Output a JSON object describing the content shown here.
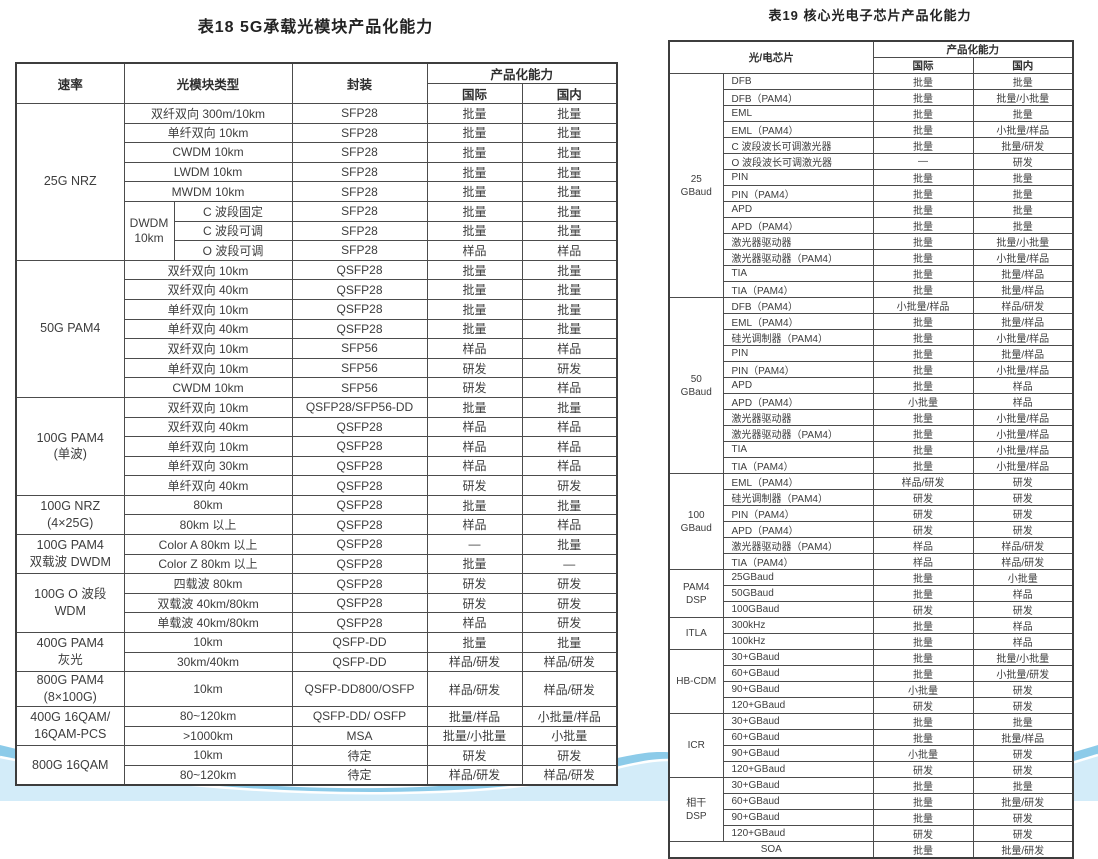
{
  "table18": {
    "title": "表18  5G承载光模块产品化能力",
    "header": {
      "rate": "速率",
      "module_type": "光模块类型",
      "package": "封装",
      "capability": "产品化能力",
      "international": "国际",
      "domestic": "国内"
    },
    "groups": [
      {
        "label": "25G NRZ",
        "rows": [
          {
            "t": "双纤双向 300m/10km",
            "p": "SFP28",
            "i": "批量",
            "d": "批量"
          },
          {
            "t": "单纤双向 10km",
            "p": "SFP28",
            "i": "批量",
            "d": "批量"
          },
          {
            "t": "CWDM 10km",
            "p": "SFP28",
            "i": "批量",
            "d": "批量"
          },
          {
            "t": "LWDM 10km",
            "p": "SFP28",
            "i": "批量",
            "d": "批量"
          },
          {
            "t": "MWDM 10km",
            "p": "SFP28",
            "i": "批量",
            "d": "批量"
          },
          {
            "s": "DWDM\n10km",
            "ss": 3,
            "t": "C 波段固定",
            "p": "SFP28",
            "i": "批量",
            "d": "批量"
          },
          {
            "in": 1,
            "t": "C 波段可调",
            "p": "SFP28",
            "i": "批量",
            "d": "批量"
          },
          {
            "in": 1,
            "t": "O 波段可调",
            "p": "SFP28",
            "i": "样品",
            "d": "样品"
          }
        ]
      },
      {
        "label": "50G PAM4",
        "rows": [
          {
            "t": "双纤双向 10km",
            "p": "QSFP28",
            "i": "批量",
            "d": "批量"
          },
          {
            "t": "双纤双向 40km",
            "p": "QSFP28",
            "i": "批量",
            "d": "批量"
          },
          {
            "t": "单纤双向 10km",
            "p": "QSFP28",
            "i": "批量",
            "d": "批量"
          },
          {
            "t": "单纤双向 40km",
            "p": "QSFP28",
            "i": "批量",
            "d": "批量"
          },
          {
            "t": "双纤双向 10km",
            "p": "SFP56",
            "i": "样品",
            "d": "样品"
          },
          {
            "t": "单纤双向 10km",
            "p": "SFP56",
            "i": "研发",
            "d": "研发"
          },
          {
            "t": "CWDM 10km",
            "p": "SFP56",
            "i": "研发",
            "d": "样品"
          }
        ]
      },
      {
        "label": "100G PAM4\n(单波)",
        "rows": [
          {
            "t": "双纤双向 10km",
            "p": "QSFP28/SFP56-DD",
            "i": "批量",
            "d": "批量"
          },
          {
            "t": "双纤双向 40km",
            "p": "QSFP28",
            "i": "样品",
            "d": "样品"
          },
          {
            "t": "单纤双向 10km",
            "p": "QSFP28",
            "i": "样品",
            "d": "样品"
          },
          {
            "t": "单纤双向 30km",
            "p": "QSFP28",
            "i": "样品",
            "d": "样品"
          },
          {
            "t": "单纤双向 40km",
            "p": "QSFP28",
            "i": "研发",
            "d": "研发"
          }
        ]
      },
      {
        "label": "100G NRZ\n(4×25G)",
        "rows": [
          {
            "t": "80km",
            "p": "QSFP28",
            "i": "批量",
            "d": "批量"
          },
          {
            "t": "80km 以上",
            "p": "QSFP28",
            "i": "样品",
            "d": "样品"
          }
        ]
      },
      {
        "label": "100G PAM4\n双载波 DWDM",
        "rows": [
          {
            "t": "Color A 80km 以上",
            "p": "QSFP28",
            "i": "—",
            "d": "批量"
          },
          {
            "t": "Color Z 80km 以上",
            "p": "QSFP28",
            "i": "批量",
            "d": "—"
          }
        ]
      },
      {
        "label": "100G O 波段\nWDM",
        "rows": [
          {
            "t": "四载波 80km",
            "p": "QSFP28",
            "i": "研发",
            "d": "研发"
          },
          {
            "t": "双载波 40km/80km",
            "p": "QSFP28",
            "i": "研发",
            "d": "研发"
          },
          {
            "t": "单载波 40km/80km",
            "p": "QSFP28",
            "i": "样品",
            "d": "研发"
          }
        ]
      },
      {
        "label": "400G PAM4\n灰光",
        "rows": [
          {
            "t": "10km",
            "p": "QSFP-DD",
            "i": "批量",
            "d": "批量"
          },
          {
            "t": "30km/40km",
            "p": "QSFP-DD",
            "i": "样品/研发",
            "d": "样品/研发"
          }
        ]
      },
      {
        "label": "800G PAM4\n(8×100G)",
        "rows": [
          {
            "tall": 1,
            "t": "10km",
            "p": "QSFP-DD800/OSFP",
            "i": "样品/研发",
            "d": "样品/研发"
          }
        ]
      },
      {
        "label": "400G 16QAM/\n16QAM-PCS",
        "rows": [
          {
            "t": "80~120km",
            "p": "QSFP-DD/ OSFP",
            "i": "批量/样品",
            "d": "小批量/样品"
          },
          {
            "t": ">1000km",
            "p": "MSA",
            "i": "批量/小批量",
            "d": "小批量"
          }
        ]
      },
      {
        "label": "800G 16QAM",
        "rows": [
          {
            "t": "10km",
            "p": "待定",
            "i": "研发",
            "d": "研发"
          },
          {
            "t": "80~120km",
            "p": "待定",
            "i": "样品/研发",
            "d": "样品/研发"
          }
        ]
      }
    ]
  },
  "table19": {
    "title": "表19  核心光电子芯片产品化能力",
    "header": {
      "chip": "光/电芯片",
      "capability": "产品化能力",
      "international": "国际",
      "domestic": "国内"
    },
    "groups": [
      {
        "label": "25\nGBaud",
        "rows": [
          {
            "t": "DFB",
            "i": "批量",
            "d": "批量"
          },
          {
            "t": "DFB（PAM4）",
            "i": "批量",
            "d": "批量/小批量"
          },
          {
            "t": "EML",
            "i": "批量",
            "d": "批量"
          },
          {
            "t": "EML（PAM4）",
            "i": "批量",
            "d": "小批量/样品"
          },
          {
            "t": "C 波段波长可调激光器",
            "i": "批量",
            "d": "批量/研发"
          },
          {
            "t": "O 波段波长可调激光器",
            "i": "—",
            "d": "研发"
          },
          {
            "t": "PIN",
            "i": "批量",
            "d": "批量"
          },
          {
            "t": "PIN（PAM4）",
            "i": "批量",
            "d": "批量"
          },
          {
            "t": "APD",
            "i": "批量",
            "d": "批量"
          },
          {
            "t": "APD（PAM4）",
            "i": "批量",
            "d": "批量"
          },
          {
            "t": "激光器驱动器",
            "i": "批量",
            "d": "批量/小批量"
          },
          {
            "t": "激光器驱动器（PAM4）",
            "i": "批量",
            "d": "小批量/样品"
          },
          {
            "t": "TIA",
            "i": "批量",
            "d": "批量/样品"
          },
          {
            "t": "TIA（PAM4）",
            "i": "批量",
            "d": "批量/样品"
          }
        ]
      },
      {
        "label": "50\nGBaud",
        "rows": [
          {
            "t": "DFB（PAM4）",
            "i": "小批量/样品",
            "d": "样品/研发"
          },
          {
            "t": "EML（PAM4）",
            "i": "批量",
            "d": "批量/样品"
          },
          {
            "t": "硅光调制器（PAM4）",
            "i": "批量",
            "d": "小批量/样品"
          },
          {
            "t": "PIN",
            "i": "批量",
            "d": "批量/样品"
          },
          {
            "t": "PIN（PAM4）",
            "i": "批量",
            "d": "小批量/样品"
          },
          {
            "t": "APD",
            "i": "批量",
            "d": "样品"
          },
          {
            "t": "APD（PAM4）",
            "i": "小批量",
            "d": "样品"
          },
          {
            "t": "激光器驱动器",
            "i": "批量",
            "d": "小批量/样品"
          },
          {
            "t": "激光器驱动器（PAM4）",
            "i": "批量",
            "d": "小批量/样品"
          },
          {
            "t": "TIA",
            "i": "批量",
            "d": "小批量/样品"
          },
          {
            "t": "TIA（PAM4）",
            "i": "批量",
            "d": "小批量/样品"
          }
        ]
      },
      {
        "label": "100\nGBaud",
        "rows": [
          {
            "t": "EML（PAM4）",
            "i": "样品/研发",
            "d": "研发"
          },
          {
            "t": "硅光调制器（PAM4）",
            "i": "研发",
            "d": "研发"
          },
          {
            "t": "PIN（PAM4）",
            "i": "研发",
            "d": "研发"
          },
          {
            "t": "APD（PAM4）",
            "i": "研发",
            "d": "研发"
          },
          {
            "t": "激光器驱动器（PAM4）",
            "i": "样品",
            "d": "样品/研发"
          },
          {
            "t": "TIA（PAM4）",
            "i": "样品",
            "d": "样品/研发"
          }
        ]
      },
      {
        "label": "PAM4\nDSP",
        "rows": [
          {
            "t": "25GBaud",
            "i": "批量",
            "d": "小批量"
          },
          {
            "t": "50GBaud",
            "i": "批量",
            "d": "样品"
          },
          {
            "t": "100GBaud",
            "i": "研发",
            "d": "研发"
          }
        ]
      },
      {
        "label": "ITLA",
        "rows": [
          {
            "t": "300kHz",
            "i": "批量",
            "d": "样品"
          },
          {
            "t": "100kHz",
            "i": "批量",
            "d": "样品"
          }
        ]
      },
      {
        "label": "HB-CDM",
        "rows": [
          {
            "t": "30+GBaud",
            "i": "批量",
            "d": "批量/小批量"
          },
          {
            "t": "60+GBaud",
            "i": "批量",
            "d": "小批量/研发"
          },
          {
            "t": "90+GBaud",
            "i": "小批量",
            "d": "研发"
          },
          {
            "t": "120+GBaud",
            "i": "研发",
            "d": "研发"
          }
        ]
      },
      {
        "label": "ICR",
        "rows": [
          {
            "t": "30+GBaud",
            "i": "批量",
            "d": "批量"
          },
          {
            "t": "60+GBaud",
            "i": "批量",
            "d": "批量/样品"
          },
          {
            "t": "90+GBaud",
            "i": "小批量",
            "d": "研发"
          },
          {
            "t": "120+GBaud",
            "i": "研发",
            "d": "研发"
          }
        ]
      },
      {
        "label": "相干\nDSP",
        "rows": [
          {
            "t": "30+GBaud",
            "i": "批量",
            "d": "批量"
          },
          {
            "t": "60+GBaud",
            "i": "批量",
            "d": "批量/研发"
          },
          {
            "t": "90+GBaud",
            "i": "批量",
            "d": "研发"
          },
          {
            "t": "120+GBaud",
            "i": "研发",
            "d": "研发"
          }
        ]
      },
      {
        "label": "",
        "rows": [
          {
            "full": 1,
            "t": "SOA",
            "i": "批量",
            "d": "批量/研发"
          }
        ]
      }
    ]
  },
  "colors": {
    "wave_back": "#8ccbe9",
    "wave_front": "#d3ecf9",
    "wave_seam": "#ffffff",
    "border_dark": "#3d3d3d",
    "text": "#3d3d3d"
  }
}
